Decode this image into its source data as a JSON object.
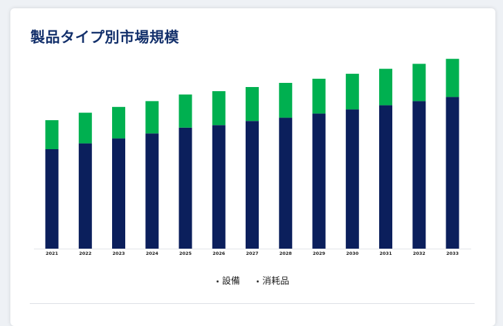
{
  "header": {
    "title": "製品タイプ別市場規模"
  },
  "chart_data": {
    "type": "bar",
    "stacked": true,
    "categories": [
      "2021",
      "2022",
      "2023",
      "2024",
      "2025",
      "2026",
      "2027",
      "2028",
      "2029",
      "2030",
      "2031",
      "2032",
      "2033"
    ],
    "series": [
      {
        "name": "設備",
        "color": "#0b1f5c",
        "values": [
          120,
          127,
          133,
          139,
          146,
          149,
          154,
          158,
          163,
          168,
          173,
          178,
          183
        ]
      },
      {
        "name": "消耗品",
        "color": "#00b050",
        "values": [
          35,
          37,
          38,
          39,
          40,
          41,
          41,
          42,
          42,
          43,
          44,
          45,
          46
        ]
      }
    ],
    "ylim": [
      0,
      240
    ],
    "grid": false,
    "legend": "bottom"
  }
}
